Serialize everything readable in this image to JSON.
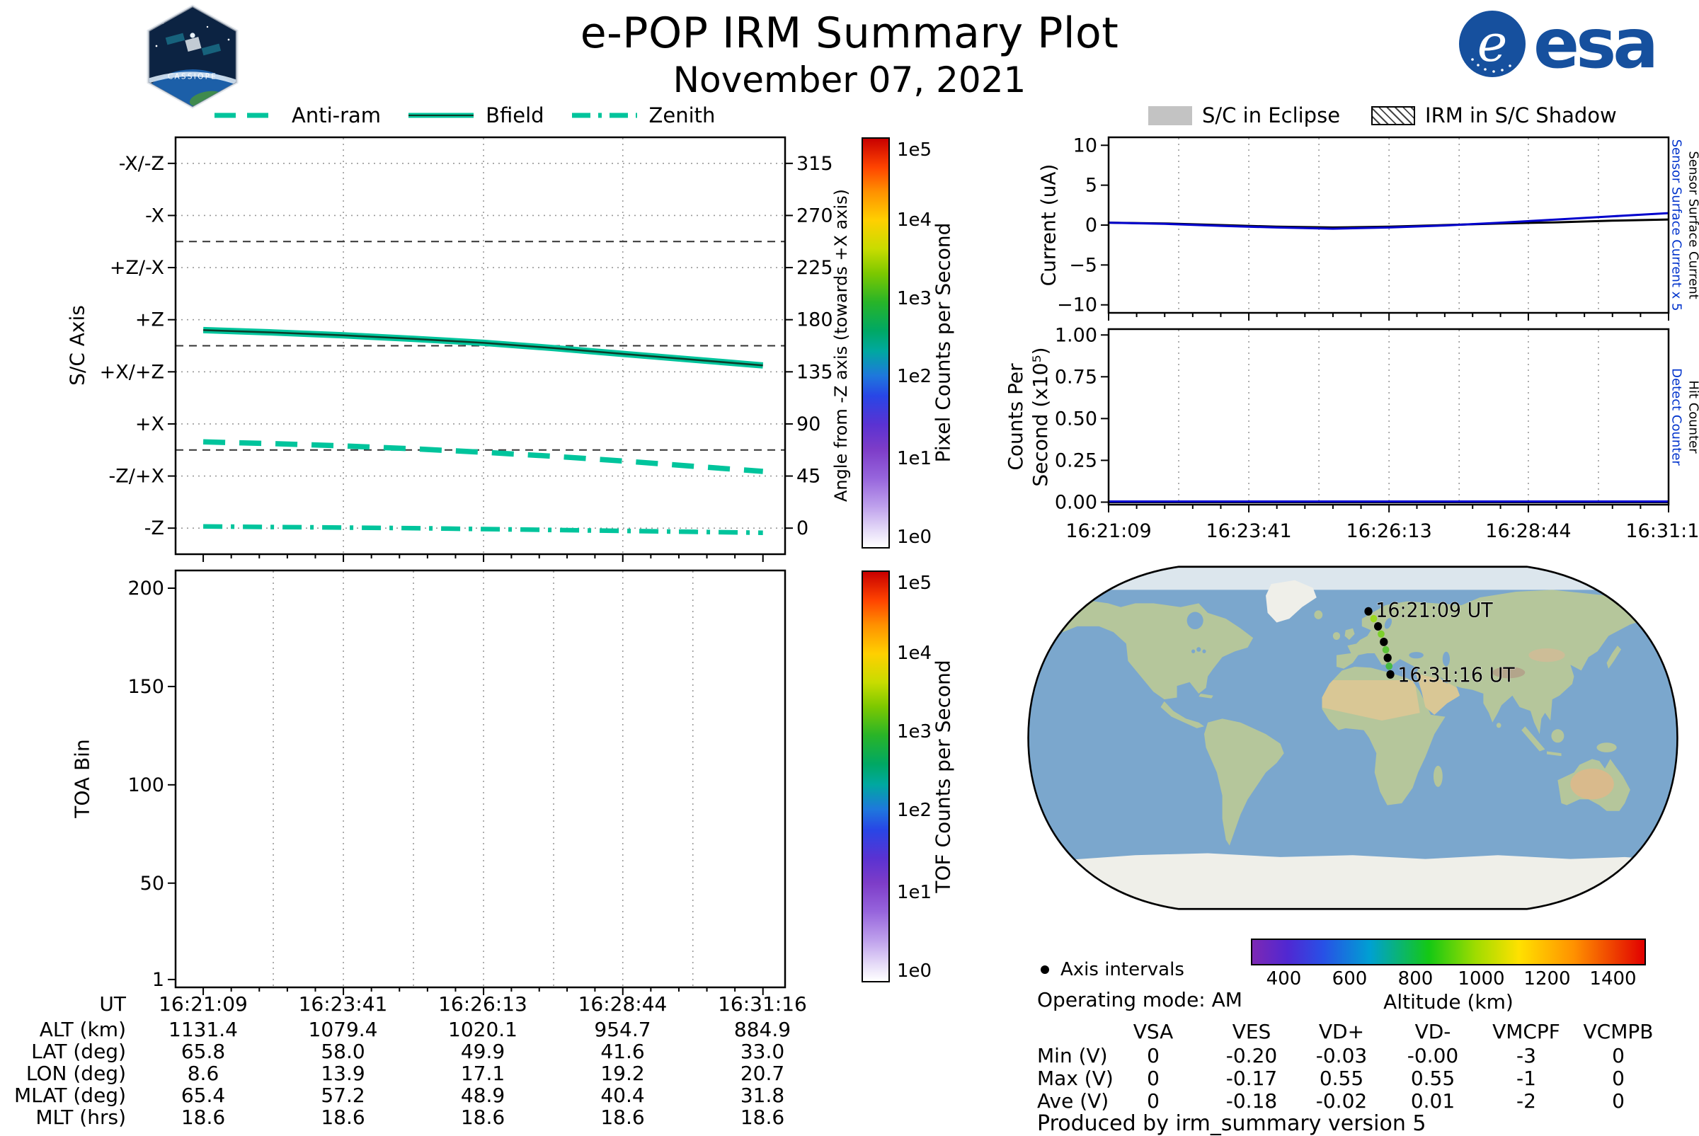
{
  "header": {
    "title": "e-POP IRM Summary Plot",
    "date": "November 07, 2021",
    "esa_label": "esa",
    "cassiope_label": "CASSIOPE"
  },
  "colors": {
    "series_teal": "#00c49c",
    "line_blue": "#0000cc",
    "line_black": "#000000",
    "annot_blue": "#0033cc",
    "eclipse_gray": "#c3c3c3",
    "ocean": "#7ba7cd",
    "land": "#b5c69b",
    "ice": "#efefe9"
  },
  "left_legend": {
    "items": [
      {
        "label": "Anti-ram",
        "style": "dashed"
      },
      {
        "label": "Bfield",
        "style": "solid"
      },
      {
        "label": "Zenith",
        "style": "dashdot"
      }
    ]
  },
  "right_legend": {
    "items": [
      {
        "label": "S/C in Eclipse",
        "style": "eclipse"
      },
      {
        "label": "IRM in S/C Shadow",
        "style": "hatch"
      }
    ]
  },
  "time_axis": {
    "labels": [
      "16:21:09",
      "16:23:41",
      "16:26:13",
      "16:28:44",
      "16:31:16"
    ],
    "seconds": [
      0,
      152,
      304,
      455,
      607
    ],
    "xlim_seconds": [
      0,
      607
    ]
  },
  "chart_data": [
    {
      "id": "sc_axis",
      "type": "line",
      "ylabel": "S/C Axis",
      "ylabel_right": "Angle from -Z axis (towards +X axis)",
      "ylim": [
        -22.5,
        337.5
      ],
      "yticks": [
        {
          "v": 315,
          "left": "-X/-Z",
          "right": "315"
        },
        {
          "v": 270,
          "left": "-X",
          "right": "270"
        },
        {
          "v": 225,
          "left": "+Z/-X",
          "right": "225"
        },
        {
          "v": 180,
          "left": "+Z",
          "right": "180"
        },
        {
          "v": 135,
          "left": "+X/+Z",
          "right": "135"
        },
        {
          "v": 90,
          "left": "+X",
          "right": "90"
        },
        {
          "v": 45,
          "left": "-Z/+X",
          "right": "45"
        },
        {
          "v": 0,
          "left": "-Z",
          "right": "0"
        }
      ],
      "ref_lines": [
        247.5,
        157.5,
        67.5
      ],
      "series": [
        {
          "name": "Bfield",
          "style": "solid",
          "x": [
            0,
            76,
            152,
            228,
            304,
            380,
            455,
            531,
            607
          ],
          "y": [
            171,
            169,
            166.5,
            163.5,
            160,
            155.5,
            150.5,
            145.5,
            140.5
          ]
        },
        {
          "name": "Anti-ram",
          "style": "dashed",
          "x": [
            0,
            76,
            152,
            228,
            304,
            380,
            455,
            531,
            607
          ],
          "y": [
            74.5,
            73,
            71,
            68.5,
            65.5,
            62,
            58,
            53.5,
            49
          ]
        },
        {
          "name": "Zenith",
          "style": "dashdot",
          "x": [
            0,
            76,
            152,
            228,
            304,
            380,
            455,
            531,
            607
          ],
          "y": [
            1.5,
            1,
            0.5,
            0,
            -0.8,
            -1.6,
            -2.4,
            -3.2,
            -4
          ]
        }
      ]
    },
    {
      "id": "toa",
      "type": "spectrogram",
      "ylabel": "TOA Bin",
      "ylim": [
        -3,
        209
      ],
      "yticks": [
        {
          "v": 200,
          "left": "200"
        },
        {
          "v": 150,
          "left": "150"
        },
        {
          "v": 100,
          "left": "100"
        },
        {
          "v": 50,
          "left": "50"
        },
        {
          "v": 1,
          "left": "1"
        }
      ],
      "series": []
    },
    {
      "id": "current",
      "type": "line",
      "ylabel": "Current (uA)",
      "ylim": [
        -11,
        11
      ],
      "yticks": [
        {
          "v": 10,
          "left": "10"
        },
        {
          "v": 5,
          "left": "5"
        },
        {
          "v": 0,
          "left": "0"
        },
        {
          "v": -5,
          "left": "−5"
        },
        {
          "v": -10,
          "left": "−10"
        }
      ],
      "right_labels": [
        {
          "text": "Sensor Surface Current x 5",
          "color": "#0033cc"
        },
        {
          "text": "Sensor Surface Current",
          "color": "#000000"
        }
      ],
      "series": [
        {
          "name": "Sensor Surface Current",
          "color": "#000000",
          "x": [
            0,
            61,
            122,
            182,
            243,
            304,
            364,
            425,
            486,
            546,
            607
          ],
          "y": [
            0.3,
            0.2,
            0.0,
            -0.2,
            -0.3,
            -0.2,
            0.0,
            0.2,
            0.35,
            0.55,
            0.7
          ]
        },
        {
          "name": "Sensor Surface Current x 5",
          "color": "#0000cc",
          "x": [
            0,
            61,
            122,
            182,
            243,
            304,
            364,
            425,
            486,
            546,
            607
          ],
          "y": [
            0.3,
            0.15,
            -0.1,
            -0.3,
            -0.45,
            -0.3,
            -0.05,
            0.3,
            0.7,
            1.1,
            1.5
          ]
        }
      ]
    },
    {
      "id": "counts",
      "type": "line",
      "ylabel": "Counts Per\nSecond (x10⁵)",
      "ylim": [
        -0.015,
        1.035
      ],
      "yticks": [
        {
          "v": 1.0,
          "left": "1.00"
        },
        {
          "v": 0.75,
          "left": "0.75"
        },
        {
          "v": 0.5,
          "left": "0.50"
        },
        {
          "v": 0.25,
          "left": "0.25"
        },
        {
          "v": 0.0,
          "left": "0.00"
        }
      ],
      "right_labels": [
        {
          "text": "Detect Counter",
          "color": "#0033cc"
        },
        {
          "text": "Hit Counter",
          "color": "#000000"
        }
      ],
      "series": [
        {
          "name": "Hit Counter",
          "color": "#000000",
          "x": [
            0,
            607
          ],
          "y": [
            0.0,
            0.0
          ]
        },
        {
          "name": "Detect Counter",
          "color": "#0000cc",
          "x": [
            0,
            607
          ],
          "y": [
            0.004,
            0.004
          ]
        }
      ]
    }
  ],
  "colorbars": {
    "pixel": {
      "label": "Pixel Counts per Second",
      "ticks": [
        "1e5",
        "1e4",
        "1e3",
        "1e2",
        "1e1",
        "1e0"
      ]
    },
    "tof": {
      "label": "TOF Counts per Second",
      "ticks": [
        "1e5",
        "1e4",
        "1e3",
        "1e2",
        "1e1",
        "1e0"
      ]
    },
    "altitude": {
      "label": "Altitude (km)",
      "ticks": [
        "400",
        "600",
        "800",
        "1000",
        "1200",
        "1400"
      ],
      "range": [
        300,
        1500
      ]
    }
  },
  "geo_table": {
    "row_labels": [
      "UT",
      "ALT (km)",
      "LAT (deg)",
      "LON (deg)",
      "MLAT (deg)",
      "MLT (hrs)"
    ],
    "rows": [
      [
        "16:21:09",
        "16:23:41",
        "16:26:13",
        "16:28:44",
        "16:31:16"
      ],
      [
        "1131.4",
        "1079.4",
        "1020.1",
        "954.7",
        "884.9"
      ],
      [
        "65.8",
        "58.0",
        "49.9",
        "41.6",
        "33.0"
      ],
      [
        "8.6",
        "13.9",
        "17.1",
        "19.2",
        "20.7"
      ],
      [
        "65.4",
        "57.2",
        "48.9",
        "40.4",
        "31.8"
      ],
      [
        "18.6",
        "18.6",
        "18.6",
        "18.6",
        "18.6"
      ]
    ]
  },
  "map": {
    "legend_dot_label": "Axis intervals",
    "operating_mode": "Operating mode: AM",
    "start_label": "16:21:09 UT",
    "end_label": "16:31:16 UT",
    "track": [
      {
        "lon": 8.6,
        "lat": 65.8,
        "type": "axis"
      },
      {
        "lon": 11.5,
        "lat": 62.0,
        "type": "alt",
        "color": "#9ad820"
      },
      {
        "lon": 13.9,
        "lat": 58.0,
        "type": "axis"
      },
      {
        "lon": 15.6,
        "lat": 54.0,
        "type": "alt",
        "color": "#7ccf2a"
      },
      {
        "lon": 17.1,
        "lat": 49.9,
        "type": "axis"
      },
      {
        "lon": 18.2,
        "lat": 45.8,
        "type": "alt",
        "color": "#5ec43a"
      },
      {
        "lon": 19.2,
        "lat": 41.6,
        "type": "axis"
      },
      {
        "lon": 20.0,
        "lat": 37.3,
        "type": "alt",
        "color": "#46ba42"
      },
      {
        "lon": 20.7,
        "lat": 33.0,
        "type": "axis"
      }
    ]
  },
  "voltage_table": {
    "columns": [
      "VSA",
      "VES",
      "VD+",
      "VD-",
      "VMCPF",
      "VCMPB"
    ],
    "row_labels": [
      "Min (V)",
      "Max (V)",
      "Ave (V)"
    ],
    "values": [
      [
        "0",
        "-0.20",
        "-0.03",
        "-0.00",
        "-3",
        "0"
      ],
      [
        "0",
        "-0.17",
        "0.55",
        "0.55",
        "-1",
        "0"
      ],
      [
        "0",
        "-0.18",
        "-0.02",
        "0.01",
        "-2",
        "0"
      ]
    ]
  },
  "footer": "Produced by irm_summary version 5"
}
